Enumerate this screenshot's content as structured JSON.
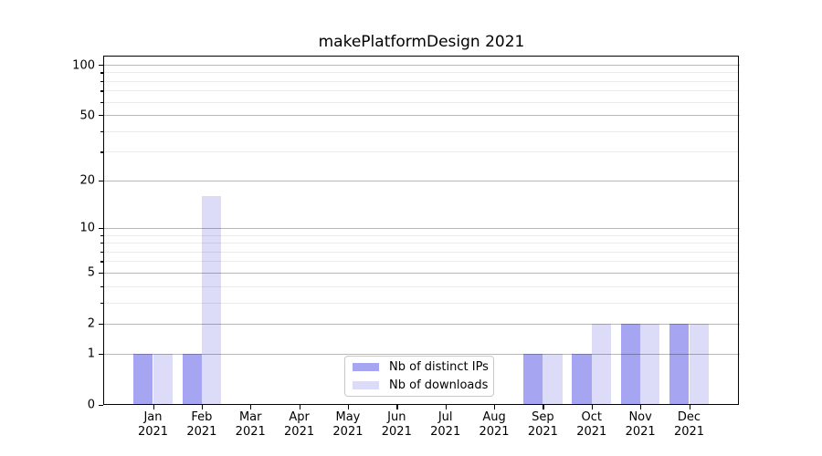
{
  "chart_data": {
    "type": "bar",
    "title": "makePlatformDesign 2021",
    "categories": [
      "Jan",
      "Feb",
      "Mar",
      "Apr",
      "May",
      "Jun",
      "Jul",
      "Aug",
      "Sep",
      "Oct",
      "Nov",
      "Dec"
    ],
    "category_year": "2021",
    "series": [
      {
        "name": "Nb of distinct IPs",
        "color": "#a5a5f2",
        "values": [
          1,
          1,
          0,
          0,
          0,
          0,
          0,
          0,
          1,
          1,
          2,
          2
        ]
      },
      {
        "name": "Nb of downloads",
        "color": "#dcdcf8",
        "values": [
          1,
          16,
          0,
          0,
          0,
          0,
          0,
          0,
          1,
          2,
          2,
          2
        ]
      }
    ],
    "yscale": "log1p",
    "y_ticks": [
      0,
      1,
      2,
      5,
      10,
      20,
      50,
      100
    ],
    "y_minor_ticks": [
      3,
      4,
      6,
      7,
      8,
      9,
      30,
      40,
      60,
      70,
      80,
      90
    ],
    "ylim": [
      0,
      113
    ],
    "xlabel": "",
    "ylabel": "",
    "grid": "both",
    "legend_position": "lower center",
    "colors": {
      "major_grid": "#b0b0b0",
      "minor_grid": "#e8e8e8",
      "axis": "#000000",
      "background": "#ffffff"
    }
  }
}
